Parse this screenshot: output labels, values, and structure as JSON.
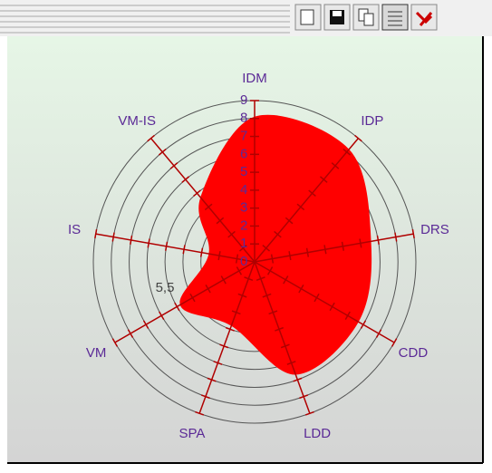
{
  "chart_data": {
    "type": "radar",
    "categories": [
      "IDM",
      "IDP",
      "DRS",
      "CDD",
      "LDD",
      "SPA",
      "VM",
      "IS",
      "VM-IS"
    ],
    "series": [
      {
        "color": "#ff0000",
        "values": [
          8.1,
          8.2,
          6.6,
          6.7,
          6.7,
          3.8,
          4.8,
          2.6,
          4.7
        ]
      }
    ],
    "rlim": [
      0,
      9
    ],
    "rticks": [
      0,
      1,
      2,
      3,
      4,
      5,
      6,
      7,
      8,
      9
    ],
    "annotations": [
      "5,5"
    ]
  }
}
